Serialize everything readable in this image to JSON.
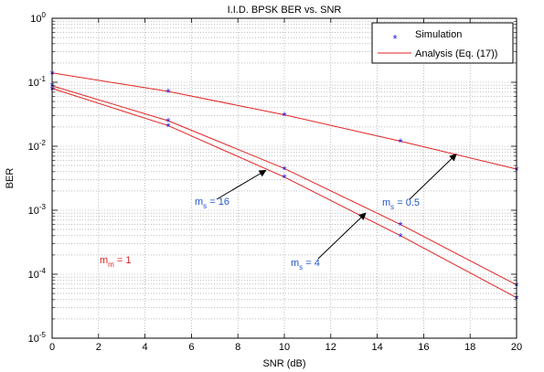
{
  "chart_data": {
    "type": "line",
    "title": "I.I.D. BPSK BER vs. SNR",
    "xlabel": "SNR (dB)",
    "ylabel": "BER",
    "xlim": [
      0,
      20
    ],
    "ylim": [
      1e-05,
      1
    ],
    "yscale": "log",
    "grid": true,
    "legend_position": "top-right",
    "x_ticks": [
      "0",
      "2",
      "4",
      "6",
      "8",
      "10",
      "12",
      "14",
      "16",
      "18",
      "20"
    ],
    "y_ticks": [
      {
        "base": "10",
        "exp": "0"
      },
      {
        "base": "10",
        "exp": "-1"
      },
      {
        "base": "10",
        "exp": "-2"
      },
      {
        "base": "10",
        "exp": "-3"
      },
      {
        "base": "10",
        "exp": "-4"
      },
      {
        "base": "10",
        "exp": "-5"
      }
    ],
    "legend": {
      "simulation": "Simulation",
      "analysis": "Analysis (Eq. (17))"
    },
    "colors": {
      "simulation": "#1a1adf",
      "analysis": "#e32222",
      "ms_label": "#2255cc",
      "mm_label": "#e32222"
    },
    "x": [
      0,
      5,
      10,
      15,
      20
    ],
    "series": [
      {
        "ms": "0.5",
        "simulation": [
          0.14,
          0.072,
          0.031,
          0.012,
          0.0044
        ],
        "analysis": [
          0.14,
          0.072,
          0.031,
          0.012,
          0.0044
        ]
      },
      {
        "ms": "4",
        "simulation": [
          0.09,
          0.025,
          0.0045,
          0.0006,
          6.8e-05
        ],
        "analysis": [
          0.088,
          0.025,
          0.0045,
          0.0006,
          6.8e-05
        ]
      },
      {
        "ms": "16",
        "simulation": [
          0.08,
          0.021,
          0.0033,
          0.0004,
          4.3e-05
        ],
        "analysis": [
          0.08,
          0.021,
          0.0033,
          0.0004,
          4.3e-05
        ]
      }
    ],
    "annotations": [
      {
        "m": "m",
        "sub": "s",
        "eq": " = 16",
        "target_x": 9.2,
        "target_y": 0.0042
      },
      {
        "m": "m",
        "sub": "s",
        "eq": " = 4",
        "target_x": 13.5,
        "target_y": 0.0009
      },
      {
        "m": "m",
        "sub": "s",
        "eq": " = 0.5",
        "target_x": 17.4,
        "target_y": 0.0075
      },
      {
        "m": "m",
        "sub": "m",
        "eq": " = 1"
      }
    ]
  }
}
